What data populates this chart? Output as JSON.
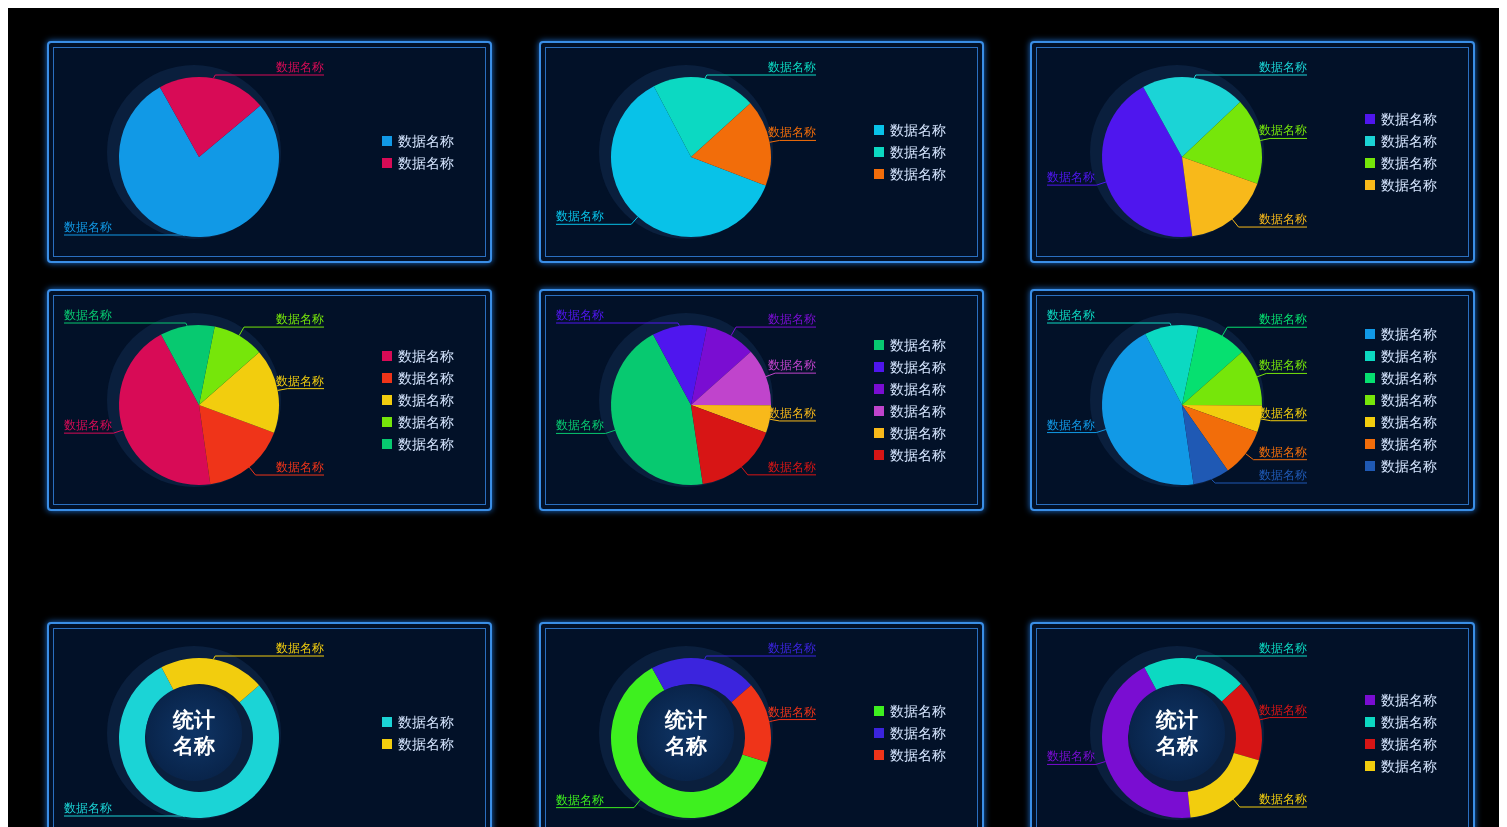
{
  "chart_data": [
    {
      "type": "pie",
      "categories": [
        "数据名称",
        "数据名称"
      ],
      "values": [
        78,
        22
      ],
      "colors": [
        "#1199e6",
        "#d80b56"
      ],
      "legend": "right"
    },
    {
      "type": "pie",
      "categories": [
        "数据名称",
        "数据名称",
        "数据名称"
      ],
      "values": [
        61.5,
        21,
        17.5
      ],
      "colors": [
        "#08c2e8",
        "#0cd9c2",
        "#f26d0a"
      ],
      "legend": "right"
    },
    {
      "type": "pie",
      "categories": [
        "数据名称",
        "数据名称",
        "数据名称",
        "数据名称"
      ],
      "values": [
        44,
        21,
        17.5,
        17.5
      ],
      "colors": [
        "#4f16ee",
        "#1bd4d6",
        "#76e60a",
        "#f8b91a"
      ],
      "legend": "right"
    },
    {
      "type": "pie",
      "categories": [
        "数据名称",
        "数据名称",
        "数据名称",
        "数据名称",
        "数据名称"
      ],
      "values": [
        44.4,
        17.1,
        17.1,
        10.4,
        11
      ],
      "colors": [
        "#d80b56",
        "#ef3419",
        "#f2cd0e",
        "#76e60a",
        "#07c970"
      ],
      "legend": "right"
    },
    {
      "type": "pie",
      "categories": [
        "数据名称",
        "数据名称",
        "数据名称",
        "数据名称",
        "数据名称",
        "数据名称"
      ],
      "values": [
        44.5,
        11.1,
        10.2,
        11.6,
        5.6,
        17
      ],
      "colors": [
        "#07c970",
        "#4f16ee",
        "#7a0dd2",
        "#c044cc",
        "#f8b91a",
        "#d71515"
      ],
      "legend": "right"
    },
    {
      "type": "pie",
      "categories": [
        "数据名称",
        "数据名称",
        "数据名称",
        "数据名称",
        "数据名称",
        "数据名称",
        "数据名称"
      ],
      "values": [
        44.7,
        10.9,
        10.2,
        11.6,
        5.4,
        9.8,
        7.4
      ],
      "colors": [
        "#1199e6",
        "#0cd9c2",
        "#06e070",
        "#76e60a",
        "#f2cd0e",
        "#f26d0a",
        "#1f59b4"
      ],
      "legend": "right"
    },
    {
      "type": "donut",
      "title": "统计名称",
      "categories": [
        "数据名称",
        "数据名称"
      ],
      "values": [
        78.7,
        21.3
      ],
      "colors": [
        "#1bd4d6",
        "#f2cd0e"
      ],
      "legend": "right"
    },
    {
      "type": "donut",
      "title": "统计名称",
      "categories": [
        "数据名称",
        "数据名称",
        "数据名称"
      ],
      "values": [
        62,
        21.6,
        16.4
      ],
      "colors": [
        "#3ef01f",
        "#3b24dd",
        "#ef3419"
      ],
      "legend": "right"
    },
    {
      "type": "donut",
      "title": "统计名称",
      "categories": [
        "数据名称",
        "数据名称",
        "数据名称",
        "数据名称"
      ],
      "values": [
        43.9,
        21,
        16.3,
        18.8
      ],
      "colors": [
        "#7a0dd2",
        "#0cd9c2",
        "#d71515",
        "#f2cd0e"
      ],
      "legend": "right"
    }
  ]
}
